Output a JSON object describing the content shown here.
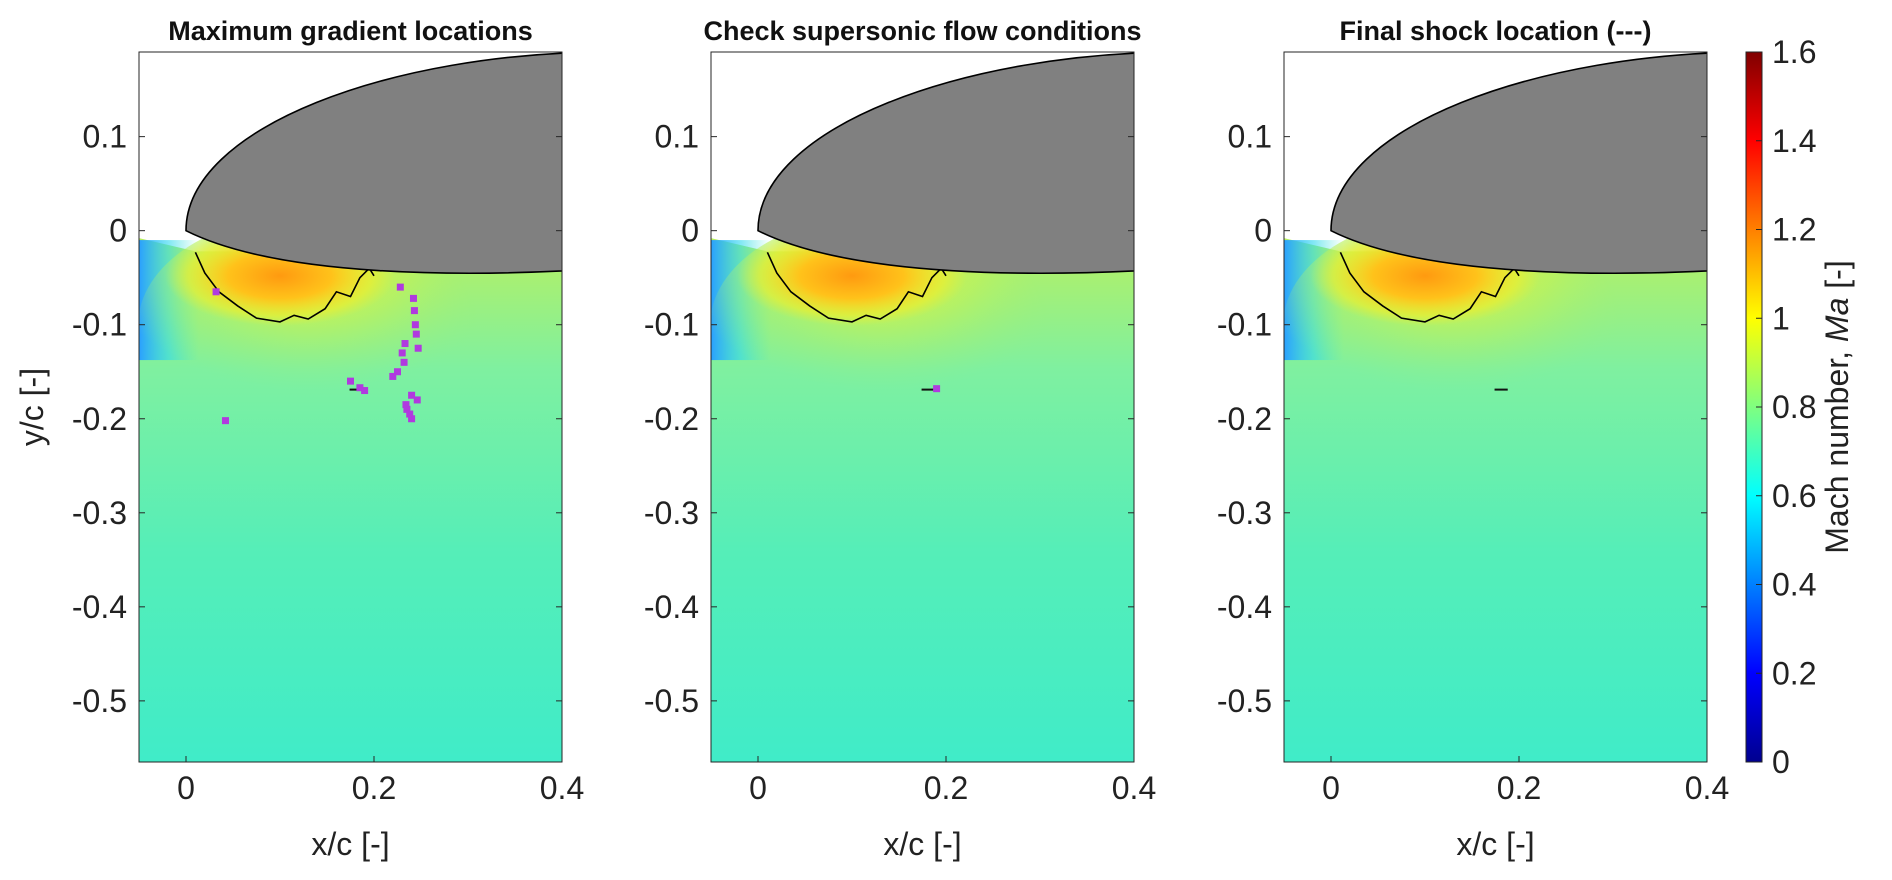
{
  "colors": {
    "airfoil": "#808080",
    "sonic_line": "#000000",
    "markers": "#b03adf",
    "axes": "#262626"
  },
  "chart_data": [
    {
      "type": "heatmap",
      "title": "Maximum gradient locations",
      "xlabel": "x/c [-]",
      "ylabel": "y/c [-]",
      "xlim": [
        -0.05,
        0.4
      ],
      "ylim": [
        -0.565,
        0.19
      ],
      "xticks": [
        "0",
        "0.2",
        "0.4"
      ],
      "yticks": [
        "0.1",
        "0",
        "-0.1",
        "-0.2",
        "-0.3",
        "-0.4",
        "-0.5"
      ],
      "markers": {
        "name": "maximum gradient points",
        "x": [
          0.032,
          0.042,
          0.175,
          0.185,
          0.19,
          0.22,
          0.225,
          0.228,
          0.23,
          0.232,
          0.233,
          0.234,
          0.235,
          0.238,
          0.24,
          0.24,
          0.242,
          0.243,
          0.244,
          0.245,
          0.246,
          0.247
        ],
        "y": [
          -0.065,
          -0.202,
          -0.16,
          -0.167,
          -0.17,
          -0.155,
          -0.15,
          -0.06,
          -0.13,
          -0.14,
          -0.12,
          -0.185,
          -0.19,
          -0.195,
          -0.2,
          -0.175,
          -0.072,
          -0.085,
          -0.1,
          -0.11,
          -0.18,
          -0.125
        ]
      }
    },
    {
      "type": "heatmap",
      "title": "Check supersonic flow conditions",
      "xlabel": "x/c [-]",
      "xlim": [
        -0.05,
        0.4
      ],
      "ylim": [
        -0.565,
        0.19
      ],
      "xticks": [
        "0",
        "0.2",
        "0.4"
      ],
      "yticks": [
        "0.1",
        "0",
        "-0.1",
        "-0.2",
        "-0.3",
        "-0.4",
        "-0.5"
      ],
      "markers": {
        "name": "supersonic check points",
        "x": [
          0.19
        ],
        "y": [
          -0.168
        ]
      }
    },
    {
      "type": "heatmap",
      "title": "Final shock location (---)",
      "xlabel": "x/c [-]",
      "xlim": [
        -0.05,
        0.4
      ],
      "ylim": [
        -0.565,
        0.19
      ],
      "xticks": [
        "0",
        "0.2",
        "0.4"
      ],
      "yticks": [
        "0.1",
        "0",
        "-0.1",
        "-0.2",
        "-0.3",
        "-0.4",
        "-0.5"
      ],
      "markers": {
        "name": "final shock",
        "x": [],
        "y": []
      }
    }
  ],
  "colorbar": {
    "label": "Mach number, ",
    "label_var": "Ma",
    "label_unit": " [-]",
    "range": [
      0,
      1.6
    ],
    "ticks": [
      "1.6",
      "1.4",
      "1.2",
      "1",
      "0.8",
      "0.6",
      "0.4",
      "0.2",
      "0"
    ],
    "colormap": "jet"
  }
}
